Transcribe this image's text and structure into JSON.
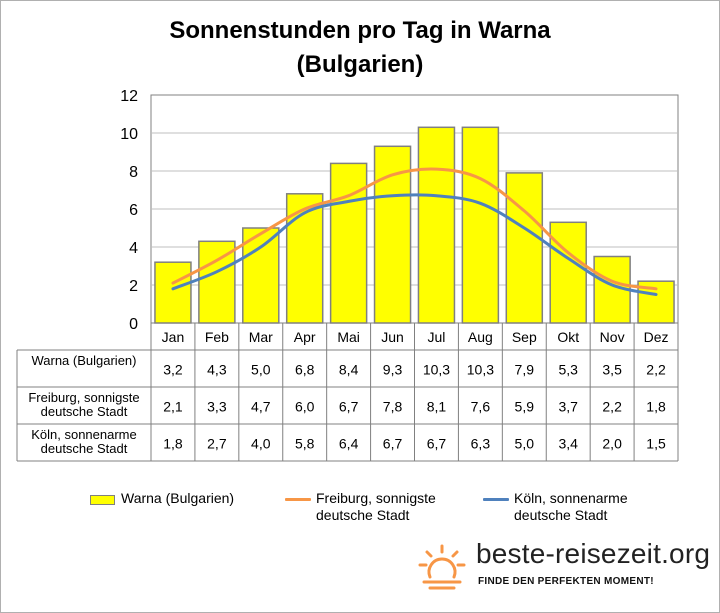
{
  "title_line1": "Sonnenstunden pro Tag in Warna",
  "title_line2": "(Bulgarien)",
  "chart_data": {
    "type": "bar",
    "title": "Sonnenstunden pro Tag in Warna (Bulgarien)",
    "categories": [
      "Jan",
      "Feb",
      "Mar",
      "Apr",
      "Mai",
      "Jun",
      "Jul",
      "Aug",
      "Sep",
      "Okt",
      "Nov",
      "Dez"
    ],
    "ylim": [
      0,
      12
    ],
    "yticks": [
      0,
      2,
      4,
      6,
      8,
      10,
      12
    ],
    "grid": true,
    "legend": "bottom",
    "series": [
      {
        "name": "Warna (Bulgarien)",
        "kind": "bar",
        "color": "#ffff00",
        "table_label": [
          "Warna (Bulgarien)"
        ],
        "values": [
          3.2,
          4.3,
          5.0,
          6.8,
          8.4,
          9.3,
          10.3,
          10.3,
          7.9,
          5.3,
          3.5,
          2.2
        ],
        "labels": [
          "3,2",
          "4,3",
          "5,0",
          "6,8",
          "8,4",
          "9,3",
          "10,3",
          "10,3",
          "7,9",
          "5,3",
          "3,5",
          "2,2"
        ]
      },
      {
        "name": "Freiburg, sonnigste deutsche Stadt",
        "kind": "line",
        "color": "#f79646",
        "table_label": [
          "Freiburg, sonnigste",
          "deutsche Stadt"
        ],
        "values": [
          2.1,
          3.3,
          4.7,
          6.0,
          6.7,
          7.8,
          8.1,
          7.6,
          5.9,
          3.7,
          2.2,
          1.8
        ],
        "labels": [
          "2,1",
          "3,3",
          "4,7",
          "6,0",
          "6,7",
          "7,8",
          "8,1",
          "7,6",
          "5,9",
          "3,7",
          "2,2",
          "1,8"
        ]
      },
      {
        "name": "Köln, sonnenarme deutsche Stadt",
        "kind": "line",
        "color": "#4f81bd",
        "table_label": [
          "Köln, sonnenarme",
          "deutsche Stadt"
        ],
        "values": [
          1.8,
          2.7,
          4.0,
          5.8,
          6.4,
          6.7,
          6.7,
          6.3,
          5.0,
          3.4,
          2.0,
          1.5
        ],
        "labels": [
          "1,8",
          "2,7",
          "4,0",
          "5,8",
          "6,4",
          "6,7",
          "6,7",
          "6,3",
          "5,0",
          "3,4",
          "2,0",
          "1,5"
        ]
      }
    ]
  },
  "legend": {
    "warna": "Warna (Bulgarien)",
    "freiburg_line1": "Freiburg, sonnigste",
    "freiburg_line2": "deutsche Stadt",
    "koeln_line1": "Köln, sonnenarme",
    "koeln_line2": "deutsche Stadt"
  },
  "brand": {
    "name": "beste-reisezeit.org",
    "tagline": "FINDE DEN PERFEKTEN MOMENT!"
  },
  "colors": {
    "bar_fill": "#ffff00",
    "bar_stroke": "#808080",
    "line_freiburg": "#f79646",
    "line_koeln": "#4f81bd",
    "sun_icon": "#f79646"
  }
}
